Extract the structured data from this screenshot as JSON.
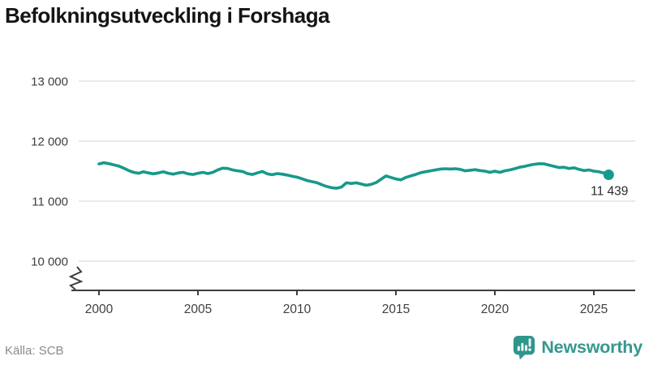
{
  "header": {
    "title": "Befolkningsutveckling i Forshaga"
  },
  "footer": {
    "source": "Källa: SCB",
    "logo_text": "Newsworthy"
  },
  "colors": {
    "line": "#17998c",
    "logo": "#2f968b",
    "grid": "#e3e3e3",
    "axis": "#3d3d3d",
    "tick_text": "#404040",
    "end_label_text": "#2b2b2b"
  },
  "chart_data": {
    "type": "line",
    "title": "Befolkningsutveckling i Forshaga",
    "series_name": "Befolkning i Forshaga",
    "source": "SCB",
    "grid": "horizontal",
    "legend": "none",
    "axis_break_at_bottom": true,
    "ylim_displayed": [
      10000,
      13000
    ],
    "xlim": [
      2000,
      2026
    ],
    "y_ticks": [
      10000,
      11000,
      12000,
      13000
    ],
    "y_tick_labels": [
      "10 000",
      "11 000",
      "12 000",
      "13 000"
    ],
    "x_ticks": [
      2000,
      2005,
      2010,
      2015,
      2020,
      2025
    ],
    "x_tick_labels": [
      "2000",
      "2005",
      "2010",
      "2015",
      "2020",
      "2025"
    ],
    "end_label": "11 439",
    "last_value": 11439,
    "x": [
      2000.0,
      2000.25,
      2000.5,
      2000.75,
      2001.0,
      2001.25,
      2001.5,
      2001.75,
      2002.0,
      2002.25,
      2002.5,
      2002.75,
      2003.0,
      2003.25,
      2003.5,
      2003.75,
      2004.0,
      2004.25,
      2004.5,
      2004.75,
      2005.0,
      2005.25,
      2005.5,
      2005.75,
      2006.0,
      2006.25,
      2006.5,
      2006.75,
      2007.0,
      2007.25,
      2007.5,
      2007.75,
      2008.0,
      2008.25,
      2008.5,
      2008.75,
      2009.0,
      2009.25,
      2009.5,
      2009.75,
      2010.0,
      2010.25,
      2010.5,
      2010.75,
      2011.0,
      2011.25,
      2011.5,
      2011.75,
      2012.0,
      2012.25,
      2012.5,
      2012.75,
      2013.0,
      2013.25,
      2013.5,
      2013.75,
      2014.0,
      2014.25,
      2014.5,
      2014.75,
      2015.0,
      2015.25,
      2015.5,
      2015.75,
      2016.0,
      2016.25,
      2016.5,
      2016.75,
      2017.0,
      2017.25,
      2017.5,
      2017.75,
      2018.0,
      2018.25,
      2018.5,
      2018.75,
      2019.0,
      2019.25,
      2019.5,
      2019.75,
      2020.0,
      2020.25,
      2020.5,
      2020.75,
      2021.0,
      2021.25,
      2021.5,
      2021.75,
      2022.0,
      2022.25,
      2022.5,
      2022.75,
      2023.0,
      2023.25,
      2023.5,
      2023.75,
      2024.0,
      2024.25,
      2024.5,
      2024.75,
      2025.0,
      2025.25,
      2025.5,
      2025.75
    ],
    "values": [
      11620,
      11640,
      11625,
      11605,
      11585,
      11550,
      11510,
      11480,
      11465,
      11490,
      11470,
      11455,
      11470,
      11490,
      11465,
      11450,
      11470,
      11480,
      11455,
      11445,
      11465,
      11480,
      11460,
      11480,
      11520,
      11550,
      11545,
      11520,
      11505,
      11495,
      11460,
      11445,
      11470,
      11495,
      11455,
      11440,
      11460,
      11450,
      11435,
      11415,
      11400,
      11375,
      11345,
      11325,
      11310,
      11275,
      11245,
      11225,
      11215,
      11235,
      11305,
      11295,
      11305,
      11285,
      11265,
      11280,
      11310,
      11365,
      11420,
      11395,
      11370,
      11355,
      11395,
      11420,
      11445,
      11475,
      11490,
      11505,
      11520,
      11535,
      11540,
      11535,
      11540,
      11530,
      11505,
      11515,
      11525,
      11510,
      11500,
      11480,
      11500,
      11480,
      11505,
      11520,
      11540,
      11565,
      11580,
      11600,
      11615,
      11625,
      11620,
      11600,
      11580,
      11560,
      11565,
      11545,
      11555,
      11530,
      11510,
      11520,
      11500,
      11490,
      11470,
      11439
    ]
  }
}
